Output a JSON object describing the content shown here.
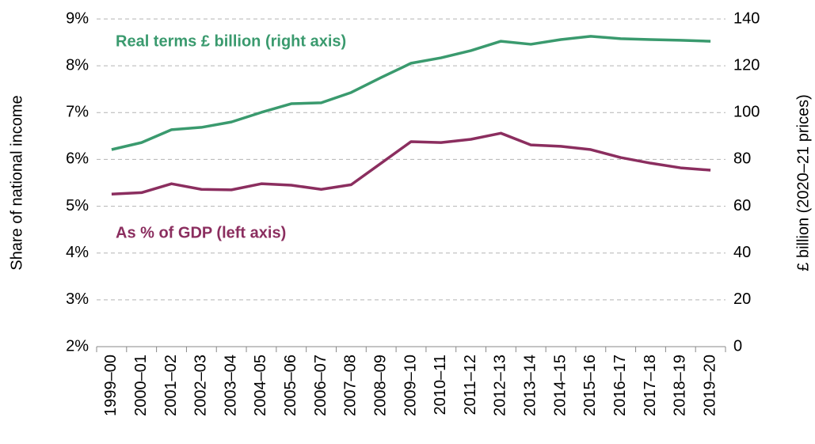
{
  "chart_data": {
    "type": "line",
    "x_label": "",
    "y_label": "Share of national income",
    "y2_label": "£ billion (2020–21 prices)",
    "categories": [
      "1999–00",
      "2000–01",
      "2001–02",
      "2002–03",
      "2003–04",
      "2004–05",
      "2005–06",
      "2006–07",
      "2007–08",
      "2008–09",
      "2009–10",
      "2010–11",
      "2011–12",
      "2012–13",
      "2013–14",
      "2014–15",
      "2015–16",
      "2016–17",
      "2017–18",
      "2018–19",
      "2019–20"
    ],
    "series": [
      {
        "name": "As % of GDP (left axis)",
        "color": "#8b2e5f",
        "axis": "y",
        "values": [
          5.26,
          5.29,
          5.48,
          5.36,
          5.35,
          5.48,
          5.45,
          5.36,
          5.46,
          5.92,
          6.38,
          6.36,
          6.43,
          6.56,
          6.31,
          6.28,
          6.21,
          6.04,
          5.92,
          5.82,
          5.77
        ]
      },
      {
        "name": "Real terms £ billion (right axis)",
        "color": "#3a9a6e",
        "axis": "y2",
        "values": [
          84.2,
          87.2,
          92.7,
          93.7,
          96.0,
          100.1,
          103.8,
          104.2,
          108.6,
          115.0,
          121.1,
          123.4,
          126.5,
          130.5,
          129.2,
          131.2,
          132.6,
          131.6,
          131.2,
          130.9,
          130.5
        ]
      }
    ],
    "ylim": [
      2,
      9
    ],
    "yticks": [
      {
        "value": 2,
        "label": "2%"
      },
      {
        "value": 3,
        "label": "3%"
      },
      {
        "value": 4,
        "label": "4%"
      },
      {
        "value": 5,
        "label": "5%"
      },
      {
        "value": 6,
        "label": "6%"
      },
      {
        "value": 7,
        "label": "7%"
      },
      {
        "value": 8,
        "label": "8%"
      },
      {
        "value": 9,
        "label": "9%"
      }
    ],
    "y2lim": [
      0,
      140
    ],
    "y2ticks": [
      0,
      20,
      40,
      60,
      80,
      100,
      120,
      140
    ],
    "grid": true
  }
}
